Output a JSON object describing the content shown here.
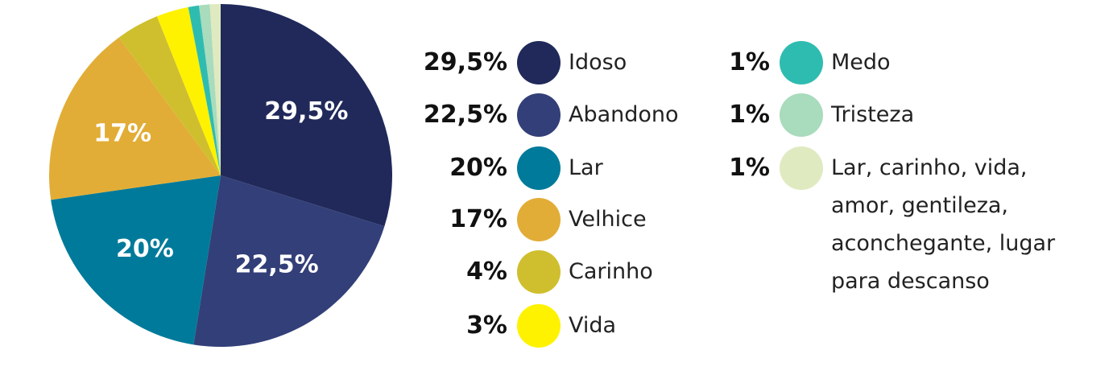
{
  "chart_data": {
    "type": "pie",
    "categories": [
      "Idoso",
      "Abandono",
      "Lar",
      "Velhice",
      "Carinho",
      "Vida",
      "Medo",
      "Tristeza",
      "Lar, carinho, vida, amor, gentileza, aconchegante, lugar para descanso"
    ],
    "values": [
      29.5,
      22.5,
      20,
      17,
      4,
      3,
      1,
      1,
      1
    ],
    "value_labels": [
      "29,5%",
      "22,5%",
      "20%",
      "17%",
      "4%",
      "3%",
      "1%",
      "1%",
      "1%"
    ],
    "colors": [
      "#20295a",
      "#333f78",
      "#007a9a",
      "#e2ad36",
      "#cfbf2e",
      "#fef200",
      "#2fbcb0",
      "#a9dbbd",
      "#dfeac0"
    ]
  }
}
